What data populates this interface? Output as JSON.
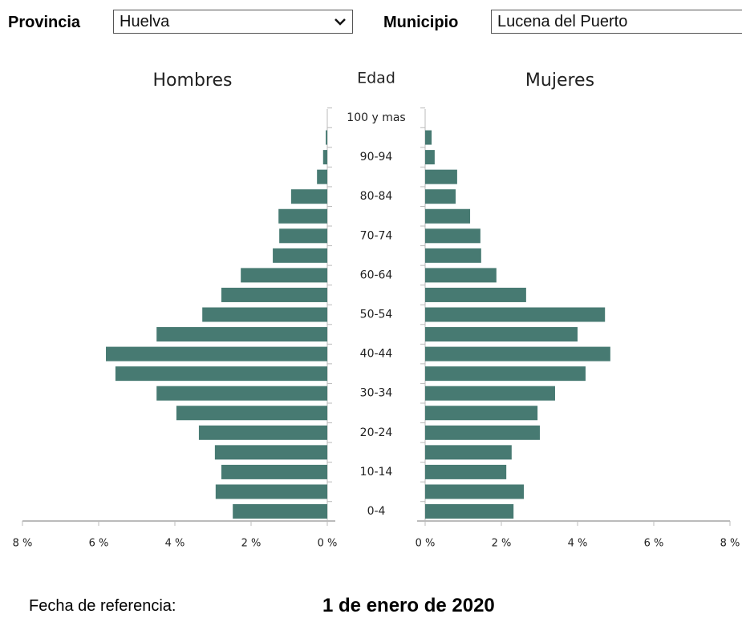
{
  "form": {
    "provincia_label": "Provincia",
    "provincia_value": "Huelva",
    "municipio_label": "Municipio",
    "municipio_value": "Lucena del Puerto"
  },
  "chart_data": {
    "type": "pyramid",
    "axis_title": "Edad",
    "categories": [
      "0-4",
      null,
      "10-14",
      null,
      "20-24",
      null,
      "30-34",
      null,
      "40-44",
      null,
      "50-54",
      null,
      "60-64",
      null,
      "70-74",
      null,
      "80-84",
      null,
      "90-94",
      null,
      "100 y mas"
    ],
    "series": [
      {
        "name": "Hombres",
        "color": "#477a72",
        "values": [
          2.48,
          2.93,
          2.78,
          2.95,
          3.37,
          3.96,
          4.48,
          5.56,
          5.81,
          4.48,
          3.28,
          2.78,
          2.27,
          1.43,
          1.26,
          1.28,
          0.95,
          0.27,
          0.11,
          0.04,
          0
        ]
      },
      {
        "name": "Mujeres",
        "color": "#477a72",
        "values": [
          2.32,
          2.59,
          2.13,
          2.27,
          3.01,
          2.95,
          3.41,
          4.21,
          4.86,
          4.0,
          4.72,
          2.65,
          1.87,
          1.47,
          1.45,
          1.18,
          0.8,
          0.84,
          0.25,
          0.17,
          0
        ]
      }
    ],
    "xlim": [
      0,
      8
    ],
    "xticks": [
      {
        "value": 0,
        "label": "0 %"
      },
      {
        "value": 2,
        "label": "2 %"
      },
      {
        "value": 4,
        "label": "4 %"
      },
      {
        "value": 6,
        "label": "6 %"
      },
      {
        "value": 8,
        "label": "8 %"
      }
    ]
  },
  "footer": {
    "label": "Fecha de referencia:",
    "date": "1 de enero de 2020"
  }
}
